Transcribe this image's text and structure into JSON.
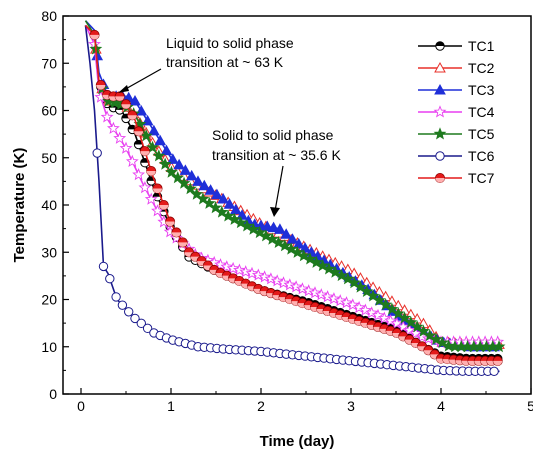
{
  "chart_data": {
    "type": "line",
    "xlabel": "Time (day)",
    "ylabel": "Temperature (K)",
    "xlim": [
      -0.2,
      5
    ],
    "ylim": [
      0,
      80
    ],
    "x_ticks": [
      "0",
      "1",
      "2",
      "3",
      "4",
      "5"
    ],
    "y_ticks": [
      "0",
      "10",
      "20",
      "30",
      "40",
      "50",
      "60",
      "70",
      "80"
    ],
    "legend_position": "top-right",
    "annotations": [
      {
        "lines": [
          "Liquid to solid phase",
          "transition at ~ 63 K"
        ],
        "target": [
          0.55,
          63
        ]
      },
      {
        "lines": [
          "Solid to solid phase",
          "transition at ~ 35.6 K"
        ],
        "target": [
          2.1,
          38
        ]
      }
    ],
    "series": [
      {
        "name": "TC1",
        "color": "#000000",
        "marker": "circle-half",
        "points": [
          [
            0.05,
            78
          ],
          [
            0.15,
            76
          ],
          [
            0.2,
            66
          ],
          [
            0.3,
            61
          ],
          [
            0.45,
            60
          ],
          [
            0.6,
            55
          ],
          [
            0.8,
            44
          ],
          [
            1.0,
            35
          ],
          [
            1.2,
            29
          ],
          [
            1.5,
            26
          ],
          [
            2.0,
            22
          ],
          [
            2.5,
            19.5
          ],
          [
            3.0,
            16.5
          ],
          [
            3.5,
            13.5
          ],
          [
            3.8,
            10
          ],
          [
            4.0,
            8
          ],
          [
            4.3,
            7.5
          ],
          [
            4.65,
            7.5
          ]
        ]
      },
      {
        "name": "TC2",
        "color": "#e8302a",
        "marker": "triangle-open",
        "points": [
          [
            0.05,
            78
          ],
          [
            0.15,
            76
          ],
          [
            0.2,
            66
          ],
          [
            0.3,
            62
          ],
          [
            0.45,
            62
          ],
          [
            0.6,
            59
          ],
          [
            0.8,
            53
          ],
          [
            1.0,
            48
          ],
          [
            1.3,
            44
          ],
          [
            1.6,
            41
          ],
          [
            2.0,
            36
          ],
          [
            2.2,
            34
          ],
          [
            2.5,
            31
          ],
          [
            3.0,
            26
          ],
          [
            3.5,
            19
          ],
          [
            3.8,
            15
          ],
          [
            4.0,
            11
          ],
          [
            4.3,
            10.5
          ],
          [
            4.65,
            10.5
          ]
        ]
      },
      {
        "name": "TC3",
        "color": "#1f2fd8",
        "marker": "triangle-filled",
        "points": [
          [
            0.05,
            79
          ],
          [
            0.15,
            77
          ],
          [
            0.2,
            68
          ],
          [
            0.3,
            63
          ],
          [
            0.5,
            63
          ],
          [
            0.6,
            62
          ],
          [
            0.8,
            56
          ],
          [
            1.0,
            50
          ],
          [
            1.3,
            45
          ],
          [
            1.6,
            41
          ],
          [
            1.9,
            36
          ],
          [
            2.2,
            35
          ],
          [
            2.4,
            32
          ],
          [
            2.8,
            27
          ],
          [
            3.2,
            22
          ],
          [
            3.5,
            17
          ],
          [
            3.8,
            13
          ],
          [
            4.0,
            11
          ],
          [
            4.3,
            10
          ],
          [
            4.65,
            10
          ]
        ]
      },
      {
        "name": "TC4",
        "color": "#e83ff0",
        "marker": "star-open",
        "points": [
          [
            0.05,
            78
          ],
          [
            0.15,
            74
          ],
          [
            0.2,
            64
          ],
          [
            0.3,
            58
          ],
          [
            0.5,
            52
          ],
          [
            0.7,
            44
          ],
          [
            0.9,
            37
          ],
          [
            1.0,
            34
          ],
          [
            1.3,
            29
          ],
          [
            1.6,
            27
          ],
          [
            2.0,
            25
          ],
          [
            2.5,
            22
          ],
          [
            3.0,
            19
          ],
          [
            3.5,
            15
          ],
          [
            3.8,
            12
          ],
          [
            4.0,
            11
          ],
          [
            4.3,
            11
          ],
          [
            4.65,
            11
          ]
        ]
      },
      {
        "name": "TC5",
        "color": "#1e7a1e",
        "marker": "star-filled",
        "points": [
          [
            0.05,
            79
          ],
          [
            0.15,
            76
          ],
          [
            0.2,
            66
          ],
          [
            0.3,
            62
          ],
          [
            0.5,
            61
          ],
          [
            0.6,
            59
          ],
          [
            0.8,
            52
          ],
          [
            1.0,
            47
          ],
          [
            1.3,
            42
          ],
          [
            1.6,
            38
          ],
          [
            2.0,
            34
          ],
          [
            2.5,
            29
          ],
          [
            3.0,
            24
          ],
          [
            3.3,
            20
          ],
          [
            3.6,
            16
          ],
          [
            3.9,
            12
          ],
          [
            4.1,
            10
          ],
          [
            4.3,
            10
          ],
          [
            4.65,
            10
          ]
        ]
      },
      {
        "name": "TC6",
        "color": "#1a1a8c",
        "marker": "circle-open",
        "points": [
          [
            0.05,
            78
          ],
          [
            0.1,
            70
          ],
          [
            0.15,
            60
          ],
          [
            0.2,
            45
          ],
          [
            0.25,
            27
          ],
          [
            0.3,
            25.5
          ],
          [
            0.4,
            20
          ],
          [
            0.6,
            16
          ],
          [
            0.8,
            13
          ],
          [
            1.0,
            11.5
          ],
          [
            1.3,
            10
          ],
          [
            1.6,
            9.5
          ],
          [
            2.0,
            9
          ],
          [
            2.5,
            8
          ],
          [
            3.0,
            7
          ],
          [
            3.5,
            6
          ],
          [
            4.0,
            5
          ],
          [
            4.3,
            4.8
          ],
          [
            4.65,
            4.8
          ]
        ]
      },
      {
        "name": "TC7",
        "color": "#e41a1a",
        "marker": "circle-red",
        "points": [
          [
            0.05,
            78
          ],
          [
            0.15,
            76
          ],
          [
            0.2,
            66
          ],
          [
            0.3,
            63
          ],
          [
            0.45,
            63
          ],
          [
            0.6,
            58
          ],
          [
            0.8,
            46
          ],
          [
            1.0,
            36
          ],
          [
            1.2,
            30
          ],
          [
            1.5,
            26
          ],
          [
            2.0,
            22
          ],
          [
            2.5,
            19
          ],
          [
            3.0,
            16
          ],
          [
            3.5,
            13
          ],
          [
            3.8,
            10
          ],
          [
            4.0,
            7.5
          ],
          [
            4.3,
            7
          ],
          [
            4.65,
            7
          ]
        ]
      }
    ]
  }
}
